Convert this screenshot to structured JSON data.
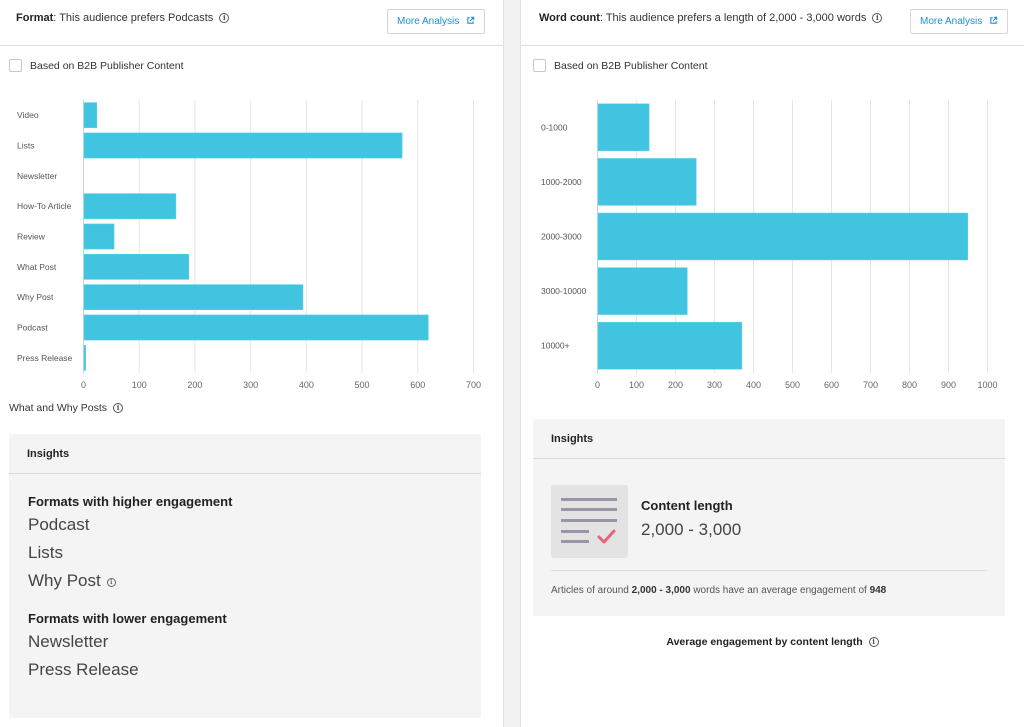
{
  "colors": {
    "bar": "#41c4e0",
    "link": "#1a8fd6",
    "grid": "#e6e6e6",
    "check": "#e8637f",
    "doc_lines": "#9a94a6"
  },
  "left_panel": {
    "title_bold": "Format",
    "title_rest": ": This audience prefers Podcasts",
    "more_button": "More Analysis",
    "checkbox_label": "Based on B2B Publisher Content",
    "checkbox_checked": false,
    "subcaption": "What and Why Posts",
    "insights": {
      "header": "Insights",
      "higher_heading": "Formats with higher engagement",
      "higher_items": [
        "Podcast",
        "Lists",
        "Why Post"
      ],
      "lower_heading": "Formats with lower engagement",
      "lower_items": [
        "Newsletter",
        "Press Release"
      ]
    }
  },
  "right_panel": {
    "title_bold": "Word count",
    "title_rest": ": This audience prefers a length of 2,000 - 3,000 words",
    "more_button": "More Analysis",
    "checkbox_label": "Based on B2B Publisher Content",
    "checkbox_checked": false,
    "insights": {
      "header": "Insights",
      "content_length_title": "Content length",
      "content_length_value": "2,000 - 3,000",
      "note_prefix": "Articles of around ",
      "note_range": "2,000 - 3,000",
      "note_mid": " words have an average engagement of ",
      "note_value": "948"
    },
    "caption": "Average engagement by content length"
  },
  "chart_data": [
    {
      "type": "bar",
      "orientation": "horizontal",
      "title": "Format",
      "categories": [
        "Video",
        "Lists",
        "Newsletter",
        "How-To Article",
        "Review",
        "What Post",
        "Why Post",
        "Podcast",
        "Press Release"
      ],
      "values": [
        23,
        571,
        0,
        165,
        54,
        188,
        393,
        618,
        3
      ],
      "xlim": [
        0,
        700
      ],
      "xticks": [
        0,
        100,
        200,
        300,
        400,
        500,
        600,
        700
      ],
      "xlabel": "",
      "ylabel": "",
      "grid": true
    },
    {
      "type": "bar",
      "orientation": "horizontal",
      "title": "Word count",
      "categories": [
        "0-1000",
        "1000-2000",
        "2000-3000",
        "3000-10000",
        "10000+"
      ],
      "values": [
        131,
        252,
        948,
        229,
        369
      ],
      "xlim": [
        0,
        1000
      ],
      "xticks": [
        0,
        100,
        200,
        300,
        400,
        500,
        600,
        700,
        800,
        900,
        1000
      ],
      "xlabel": "",
      "ylabel": "",
      "grid": true
    }
  ]
}
